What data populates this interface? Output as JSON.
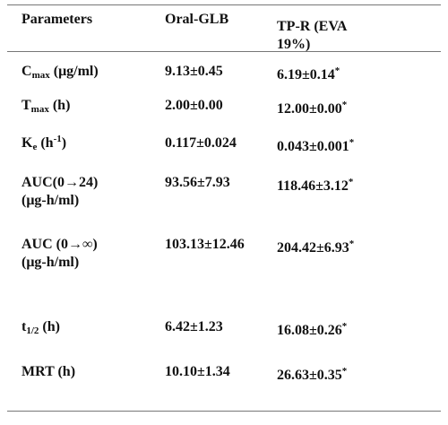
{
  "table": {
    "header": [
      "Parameters",
      "Oral-GLB",
      "TP-R (EVA 19%)"
    ],
    "rows": [
      {
        "parameter": [
          [
            {
              "text": "C"
            },
            {
              "text": "max",
              "pos": "sub"
            },
            {
              "text": " (μg/ml)"
            }
          ]
        ],
        "oral": "9.13±0.45",
        "tpr": {
          "value": "6.19±0.14",
          "mark": "*"
        }
      },
      {
        "parameter": [
          [
            {
              "text": "T"
            },
            {
              "text": "max",
              "pos": "sub"
            },
            {
              "text": " (h)"
            }
          ]
        ],
        "oral": "2.00±0.00",
        "tpr": {
          "value": "12.00±0.00",
          "mark": "*"
        }
      },
      {
        "parameter": [
          [
            {
              "text": "K"
            },
            {
              "text": "e",
              "pos": "sub"
            },
            {
              "text": " (h"
            },
            {
              "text": "-1",
              "pos": "sup"
            },
            {
              "text": ")"
            }
          ]
        ],
        "oral": "0.117±0.024",
        "tpr": {
          "value": "0.043±0.001",
          "mark": "*"
        }
      },
      {
        "parameter": [
          [
            {
              "text": "AUC(0→24)"
            }
          ],
          [
            {
              "text": "(μg-h/ml)"
            }
          ]
        ],
        "oral": "93.56±7.93",
        "tpr": {
          "value": "118.46±3.12",
          "mark": "*"
        }
      },
      {
        "parameter": [
          [
            {
              "text": "AUC (0→∞)"
            }
          ],
          [
            {
              "text": "(μg-h/ml)"
            }
          ]
        ],
        "oral": "103.13±12.46",
        "tpr": {
          "value": "204.42±6.93",
          "mark": "*"
        }
      },
      {
        "parameter": [
          [
            {
              "text": "t"
            },
            {
              "text": "1/2",
              "pos": "sub"
            },
            {
              "text": " (h)"
            }
          ]
        ],
        "oral": "6.42±1.23",
        "tpr": {
          "value": "16.08±0.26",
          "mark": "*"
        }
      },
      {
        "parameter": [
          [
            {
              "text": "MRT (h)"
            }
          ]
        ],
        "oral": "10.10±1.34",
        "tpr": {
          "value": "26.63±0.35",
          "mark": "*"
        }
      }
    ]
  }
}
